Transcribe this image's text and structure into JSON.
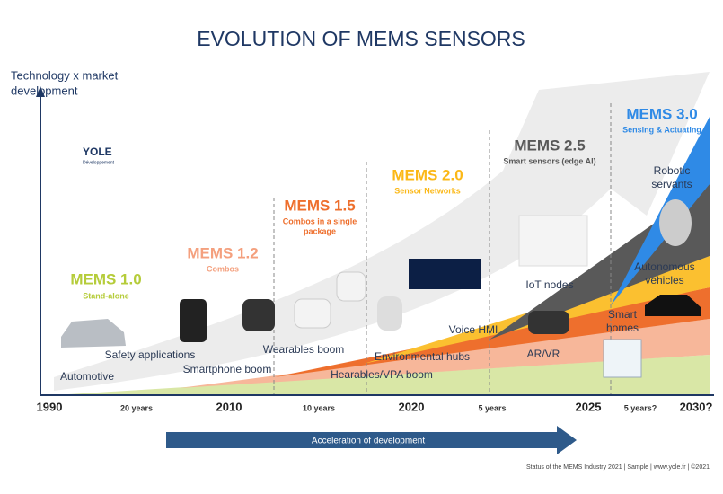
{
  "header": {
    "title": "EVOLUTION OF MEMS SENSORS",
    "logo": "YOLE",
    "logo_sub": "Développement"
  },
  "axis": {
    "y_label": [
      "Technology x market",
      "development"
    ],
    "years": [
      "1990",
      "2010",
      "2020",
      "2025",
      "2030?"
    ],
    "intervals": [
      "20 years",
      "10 years",
      "5 years",
      "5 years?"
    ],
    "arrow": "Acceleration of development"
  },
  "generations": [
    {
      "name": "MEMS 1.0",
      "subtitle": [
        "Stand-alone"
      ]
    },
    {
      "name": "MEMS 1.2",
      "subtitle": [
        "Combos"
      ]
    },
    {
      "name": "MEMS 1.5",
      "subtitle": [
        "Combos in a single",
        "package"
      ]
    },
    {
      "name": "MEMS 2.0",
      "subtitle": [
        "Sensor Networks"
      ]
    },
    {
      "name": "MEMS 2.5",
      "subtitle": [
        "Smart sensors (edge AI)"
      ]
    },
    {
      "name": "MEMS 3.0",
      "subtitle": [
        "Sensing & Actuating"
      ]
    }
  ],
  "markets": [
    [
      "Automotive"
    ],
    [
      "Safety applications"
    ],
    [
      "Smartphone boom"
    ],
    [
      "Wearables boom"
    ],
    [
      "Hearables/VPA boom"
    ],
    [
      "Environmental hubs"
    ],
    [
      "Voice HMI"
    ],
    [
      "AR/VR"
    ],
    [
      "IoT nodes"
    ],
    [
      "Smart",
      "homes"
    ],
    [
      "Autonomous",
      "vehicles"
    ],
    [
      "Robotic",
      "servants"
    ]
  ],
  "footer": "Status of the MEMS Industry 2021 | Sample | www.yole.fr | ©2021"
}
